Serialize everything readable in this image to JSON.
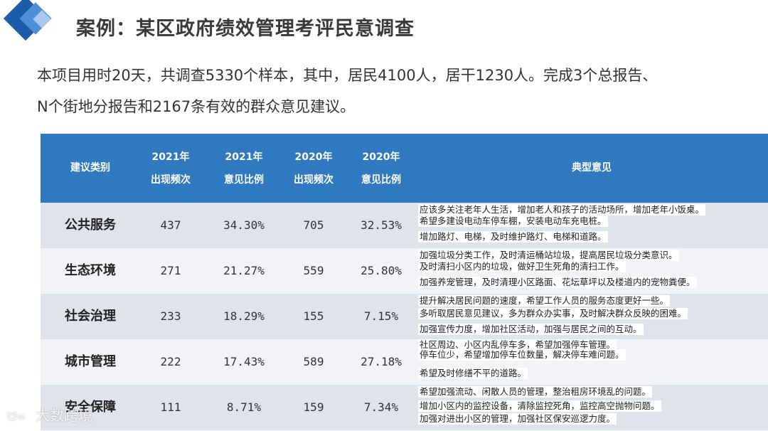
{
  "header": {
    "title": "案例：某区政府绩效管理考评民意调查"
  },
  "intro": {
    "line1": "本项目用时20天，共调查5330个样本，其中，居民4100人，居干1230人。完成3个总报告、",
    "line2": "N个街地分报告和2167条有效的群众意见建议。"
  },
  "table": {
    "headers": {
      "category": "建议类别",
      "c2021_freq_1": "2021年",
      "c2021_freq_2": "出现频次",
      "c2021_ratio_1": "2021年",
      "c2021_ratio_2": "意见比例",
      "c2020_freq_1": "2020年",
      "c2020_freq_2": "出现频次",
      "c2020_ratio_1": "2020年",
      "c2020_ratio_2": "意见比例",
      "opinions": "典型意见"
    },
    "rows": [
      {
        "category": "公共服务",
        "freq2021": "437",
        "ratio2021": "34.30%",
        "freq2020": "705",
        "ratio2020": "32.53%",
        "opinions": [
          "应该多关注老年人生活，增加老人和孩子的活动场所，增加老年小饭桌。",
          "希望多建设电动车停车棚，安装电动车充电桩。",
          "增加路灯、电梯，及时维护路灯、电梯和道路。"
        ]
      },
      {
        "category": "生态环境",
        "freq2021": "271",
        "ratio2021": "21.27%",
        "freq2020": "559",
        "ratio2020": "25.80%",
        "opinions": [
          "加强垃圾分类工作，及时清运桶站垃圾，提高居民垃圾分类意识。",
          "及时清扫小区内的垃圾，做好卫生死角的清扫工作。",
          "加强养宠管理，及时清理小区路面、花坛草坪以及楼道内的宠物粪便。"
        ]
      },
      {
        "category": "社会治理",
        "freq2021": "233",
        "ratio2021": "18.29%",
        "freq2020": "155",
        "ratio2020": "7.15%",
        "opinions": [
          "提升解决居民问题的速度，希望工作人员的服务态度更好一些。",
          "多听取居民意见建议，多为群众办实事，及时解决群众反映的困难。",
          "加强宣传力度，增加社区活动，加强与居民之间的互动。"
        ]
      },
      {
        "category": "城市管理",
        "freq2021": "222",
        "ratio2021": "17.43%",
        "freq2020": "589",
        "ratio2020": "27.18%",
        "opinions": [
          "社区周边、小区内乱停车多，希望加强停车管理。",
          "停车位少，希望增加停车位数量，解决停车难问题。",
          "希望及时修缮不平的道路。"
        ]
      },
      {
        "category": "安全保障",
        "freq2021": "111",
        "ratio2021": "8.71%",
        "freq2020": "159",
        "ratio2020": "7.34%",
        "opinions": [
          "希望加强流动、闲散人员的管理，整治租房环境乱的问题。",
          "增加小区内的监控设备，清除监控死角，监控高空抛物问题。",
          "加强对进出小区的管理，加强社区保安巡逻力度。"
        ]
      }
    ]
  },
  "watermark": {
    "text": "大数跨境"
  },
  "colors": {
    "header_bg": "#2f79c1",
    "row_dark": "#dfe3ea",
    "row_light": "#f1f3f7",
    "logo_dark": "#1a5ca8",
    "logo_mid": "#4d8fd6"
  }
}
